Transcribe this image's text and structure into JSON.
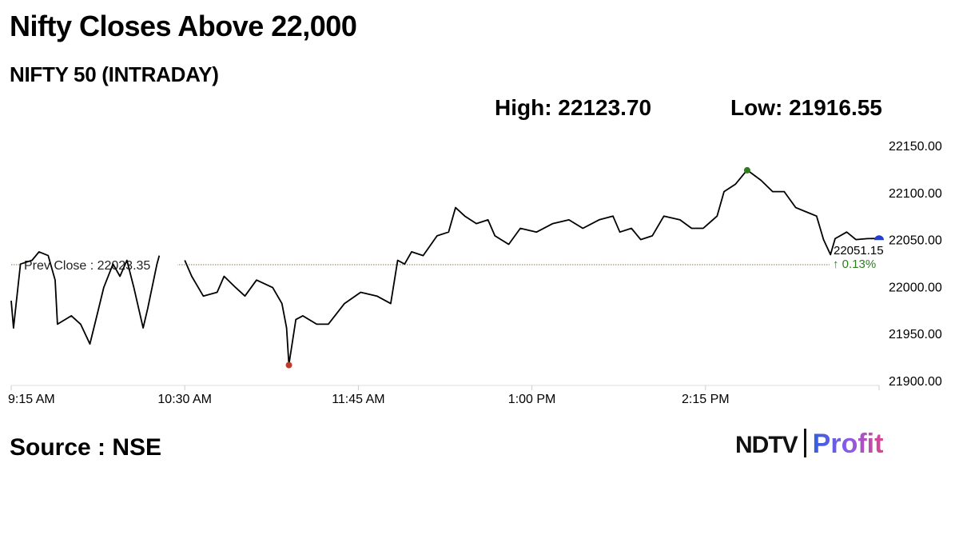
{
  "title": "Nifty Closes Above 22,000",
  "subtitle": "NIFTY 50 (INTRADAY)",
  "high_label": "High: 22123.70",
  "low_label": "Low: 21916.55",
  "source": "Source : NSE",
  "logo": {
    "part1": "NDTV",
    "part2": "Profit"
  },
  "chart_data": {
    "type": "line",
    "title": "NIFTY 50 (INTRADAY)",
    "xlim": [
      "09:15",
      "15:30"
    ],
    "ylim": [
      21900,
      22150
    ],
    "y_ticks": [
      "22150.00",
      "22100.00",
      "22050.00",
      "22000.00",
      "21950.00",
      "21900.00"
    ],
    "x_ticks": [
      {
        "t": "09:15",
        "label": "9:15 AM"
      },
      {
        "t": "10:30",
        "label": "10:30 AM"
      },
      {
        "t": "11:45",
        "label": "11:45 AM"
      },
      {
        "t": "13:00",
        "label": "1:00 PM"
      },
      {
        "t": "14:15",
        "label": "2:15 PM"
      }
    ],
    "prev_close": 22023.35,
    "prev_close_label": "Prev Close : 22023.35",
    "last_value_label": "22051.15",
    "change_label": "↑ 0.13%",
    "high_point": {
      "t": "14:33",
      "v": 22123.7
    },
    "low_point": {
      "t": "11:15",
      "v": 21916.55
    },
    "colors": {
      "line": "#000000",
      "high": "#2e7d1e",
      "low": "#c0392b",
      "last": "#1f3fd6",
      "change": "#2e7d1e",
      "prev_close": "#8a7a4a"
    },
    "grid": false,
    "points": [
      [
        "09:15",
        21985
      ],
      [
        "09:16",
        21956
      ],
      [
        "09:19",
        22024
      ],
      [
        "09:24",
        22028
      ],
      [
        "09:27",
        22037
      ],
      [
        "09:31",
        22033
      ],
      [
        "09:34",
        22007
      ],
      [
        "09:35",
        21960
      ],
      [
        "09:41",
        21969
      ],
      [
        "09:45",
        21960
      ],
      [
        "09:49",
        21939
      ],
      [
        "09:52",
        21969
      ],
      [
        "09:55",
        21999
      ],
      [
        "09:59",
        22024
      ],
      [
        "10:02",
        22011
      ],
      [
        "10:05",
        22028
      ],
      [
        "10:08",
        21999
      ],
      [
        "10:12",
        21956
      ],
      [
        "10:14",
        21977
      ],
      [
        "10:18",
        22024
      ],
      [
        "10:19",
        22033
      ],
      [
        "10:30",
        22028
      ],
      [
        "10:33",
        22011
      ],
      [
        "10:38",
        21990
      ],
      [
        "10:44",
        21994
      ],
      [
        "10:47",
        22011
      ],
      [
        "10:52",
        21999
      ],
      [
        "10:56",
        21990
      ],
      [
        "11:01",
        22007
      ],
      [
        "11:08",
        21999
      ],
      [
        "11:12",
        21982
      ],
      [
        "11:14",
        21956
      ],
      [
        "11:15",
        21917
      ],
      [
        "11:18",
        21965
      ],
      [
        "11:21",
        21969
      ],
      [
        "11:27",
        21960
      ],
      [
        "11:32",
        21960
      ],
      [
        "11:39",
        21982
      ],
      [
        "11:46",
        21994
      ],
      [
        "11:53",
        21990
      ],
      [
        "11:59",
        21982
      ],
      [
        "12:02",
        22028
      ],
      [
        "12:05",
        22024
      ],
      [
        "12:08",
        22037
      ],
      [
        "12:13",
        22033
      ],
      [
        "12:19",
        22054
      ],
      [
        "12:24",
        22058
      ],
      [
        "12:27",
        22084
      ],
      [
        "12:31",
        22075
      ],
      [
        "12:36",
        22067
      ],
      [
        "12:41",
        22071
      ],
      [
        "12:44",
        22054
      ],
      [
        "12:50",
        22045
      ],
      [
        "12:55",
        22062
      ],
      [
        "13:02",
        22058
      ],
      [
        "13:09",
        22067
      ],
      [
        "13:16",
        22071
      ],
      [
        "13:22",
        22062
      ],
      [
        "13:29",
        22071
      ],
      [
        "13:35",
        22075
      ],
      [
        "13:38",
        22058
      ],
      [
        "13:43",
        22062
      ],
      [
        "13:47",
        22050
      ],
      [
        "13:52",
        22054
      ],
      [
        "13:57",
        22075
      ],
      [
        "14:04",
        22071
      ],
      [
        "14:09",
        22062
      ],
      [
        "14:14",
        22062
      ],
      [
        "14:20",
        22075
      ],
      [
        "14:23",
        22101
      ],
      [
        "14:28",
        22109
      ],
      [
        "14:33",
        22124
      ],
      [
        "14:39",
        22113
      ],
      [
        "14:44",
        22101
      ],
      [
        "14:49",
        22101
      ],
      [
        "14:54",
        22084
      ],
      [
        "14:59",
        22079
      ],
      [
        "15:03",
        22075
      ],
      [
        "15:06",
        22050
      ],
      [
        "15:09",
        22034
      ],
      [
        "15:11",
        22051
      ],
      [
        "15:16",
        22058
      ],
      [
        "15:20",
        22050
      ],
      [
        "15:25",
        22051
      ],
      [
        "15:30",
        22051.15
      ]
    ]
  }
}
